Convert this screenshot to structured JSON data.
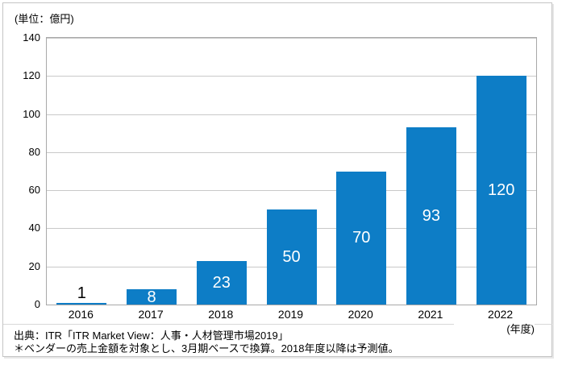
{
  "page": {
    "unit_label": "(単位：億円)",
    "year_axis_label": "(年度)",
    "source": {
      "line1": "出典：ITR「ITR Market View：人事・人材管理市場2019」",
      "line2": "＊ベンダーの売上金額を対象とし、3月期ベースで換算。2018年度以降は予測値。"
    }
  },
  "colors": {
    "bar": "#0d7dc6",
    "grid": "#c9c9c9",
    "plot_border": "#a8a8a8",
    "label_inside": "#ffffff",
    "label_outside": "#000000"
  },
  "chart_data": {
    "type": "bar",
    "title": "",
    "categories": [
      "2016",
      "2017",
      "2018",
      "2019",
      "2020",
      "2021",
      "2022"
    ],
    "values": [
      1,
      8,
      23,
      50,
      70,
      93,
      120
    ],
    "xlabel": "(年度)",
    "ylabel": "(単位：億円)",
    "ylim": [
      0,
      140
    ],
    "yticks": [
      0,
      20,
      40,
      60,
      80,
      100,
      120,
      140
    ],
    "grid": true,
    "legend_position": "none",
    "bar_label_positions": [
      "outside-top",
      "center",
      "center",
      "center",
      "center",
      "center",
      "center"
    ]
  }
}
